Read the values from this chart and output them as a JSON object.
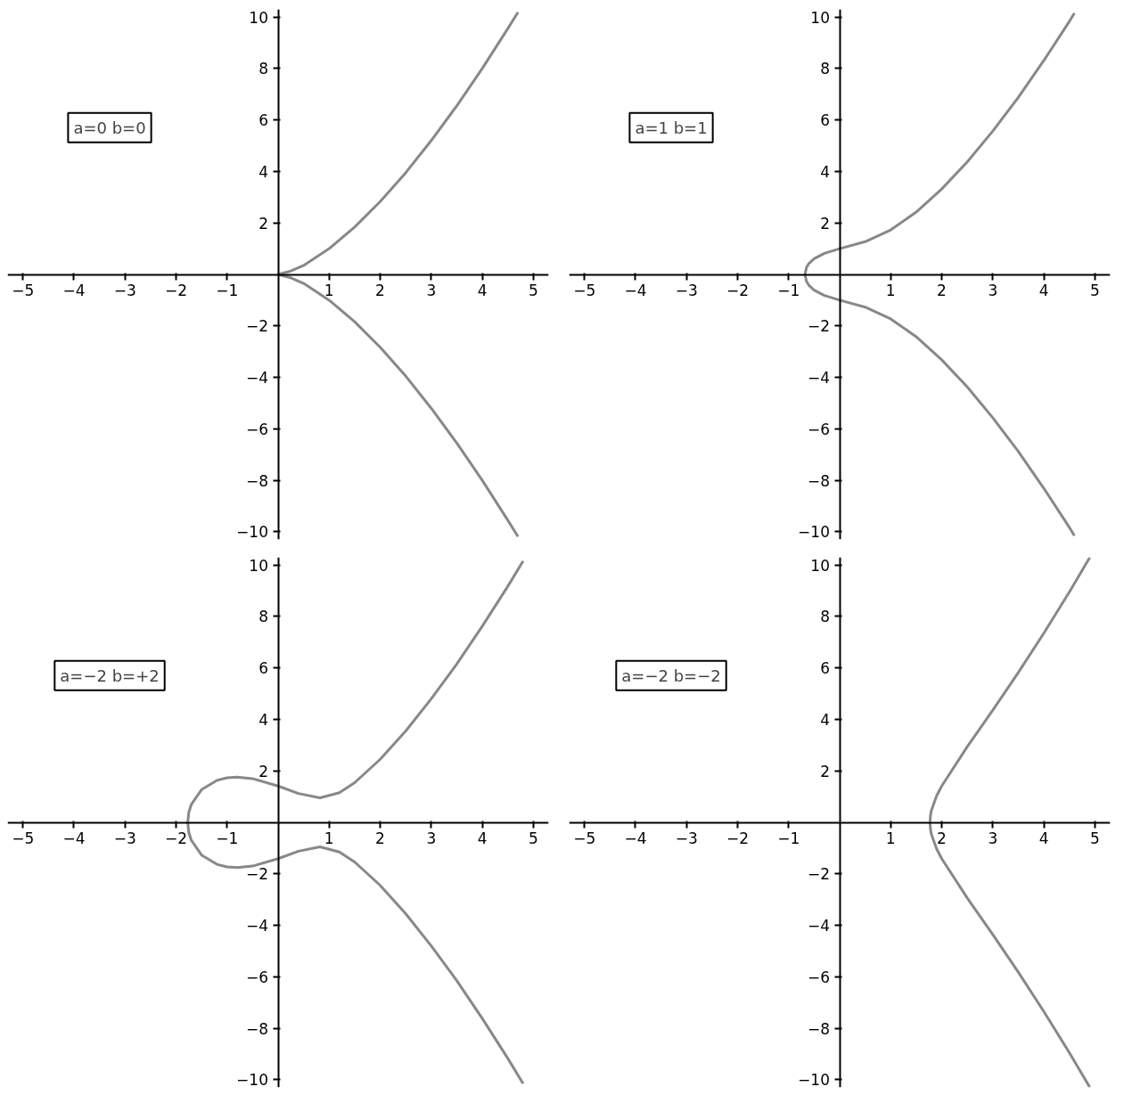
{
  "chart_data": [
    {
      "type": "line",
      "annotations": [
        "a=0 b=0"
      ],
      "xlim": [
        -5.3,
        5.3
      ],
      "ylim": [
        -10.3,
        10.3
      ],
      "xticks": [
        -5,
        -4,
        -3,
        -2,
        -1,
        1,
        2,
        3,
        4,
        5
      ],
      "yticks": [
        -10,
        -8,
        -6,
        -4,
        -2,
        2,
        4,
        6,
        8,
        10
      ],
      "grid": false,
      "series": [
        {
          "color": "#888888",
          "x": [
            4.7,
            4.5,
            4,
            3.5,
            3,
            2.5,
            2,
            1.5,
            1,
            0.5,
            0.25,
            0,
            0.25,
            0.5,
            1,
            1.5,
            2,
            2.5,
            3,
            3.5,
            4,
            4.5,
            4.7
          ],
          "values": [
            -10.19,
            -9.55,
            -8,
            -6.55,
            -5.2,
            -3.95,
            -2.83,
            -1.84,
            -1,
            -0.35,
            -0.13,
            0,
            0.13,
            0.35,
            1,
            1.84,
            2.83,
            3.95,
            5.2,
            6.55,
            8,
            9.55,
            10.19
          ]
        }
      ]
    },
    {
      "type": "line",
      "annotations": [
        "a=1 b=1"
      ],
      "xlim": [
        -5.3,
        5.3
      ],
      "ylim": [
        -10.3,
        10.3
      ],
      "xticks": [
        -5,
        -4,
        -3,
        -2,
        -1,
        1,
        2,
        3,
        4,
        5
      ],
      "yticks": [
        -10,
        -8,
        -6,
        -4,
        -2,
        2,
        4,
        6,
        8,
        10
      ],
      "grid": false,
      "series": [
        {
          "color": "#888888",
          "x": [
            4.6,
            4.5,
            4,
            3.5,
            3,
            2.5,
            2,
            1.5,
            1,
            0.5,
            0,
            -0.3,
            -0.5,
            -0.6,
            -0.65,
            -0.68,
            -0.65,
            -0.6,
            -0.5,
            -0.3,
            0,
            0.5,
            1,
            1.5,
            2,
            2.5,
            3,
            3.5,
            4,
            4.5,
            4.6
          ],
          "values": [
            -10.15,
            -9.83,
            -8.31,
            -6.88,
            -5.57,
            -4.37,
            -3.32,
            -2.42,
            -1.73,
            -1.27,
            -1,
            -0.82,
            -0.61,
            -0.43,
            -0.27,
            0,
            0.27,
            0.43,
            0.61,
            0.82,
            1,
            1.27,
            1.73,
            2.42,
            3.32,
            4.37,
            5.57,
            6.88,
            8.31,
            9.83,
            10.15
          ]
        }
      ]
    },
    {
      "type": "line",
      "annotations": [
        "a=−2 b=+2"
      ],
      "xlim": [
        -5.3,
        5.3
      ],
      "ylim": [
        -10.3,
        10.3
      ],
      "xticks": [
        -5,
        -4,
        -3,
        -2,
        -1,
        1,
        2,
        3,
        4,
        5
      ],
      "yticks": [
        -10,
        -8,
        -6,
        -4,
        -2,
        2,
        4,
        6,
        8,
        10
      ],
      "grid": false,
      "series": [
        {
          "color": "#888888",
          "x": [
            4.8,
            4.5,
            4,
            3.5,
            3,
            2.5,
            2,
            1.5,
            1.2,
            0.82,
            0.4,
            0,
            -0.5,
            -0.8,
            -1,
            -1.2,
            -1.5,
            -1.7,
            -1.75,
            -1.77,
            -1.75,
            -1.7,
            -1.5,
            -1.2,
            -1,
            -0.8,
            -0.5,
            0,
            0.4,
            0.82,
            1.2,
            1.5,
            2,
            2.5,
            3,
            3.5,
            4,
            4.5,
            4.8
          ],
          "values": [
            -10.15,
            -9.17,
            -7.62,
            -6.15,
            -4.8,
            -3.55,
            -2.45,
            -1.54,
            -1.15,
            -0.95,
            -1.12,
            -1.41,
            -1.7,
            -1.76,
            -1.73,
            -1.63,
            -1.27,
            -0.7,
            -0.38,
            0,
            0.38,
            0.7,
            1.27,
            1.63,
            1.73,
            1.76,
            1.7,
            1.41,
            1.12,
            0.95,
            1.15,
            1.54,
            2.45,
            3.55,
            4.8,
            6.15,
            7.62,
            9.17,
            10.15
          ]
        }
      ]
    },
    {
      "type": "line",
      "annotations": [
        "a=−2 b=−2"
      ],
      "xlim": [
        -5.3,
        5.3
      ],
      "ylim": [
        -10.3,
        10.3
      ],
      "xticks": [
        -5,
        -4,
        -3,
        -2,
        -1,
        1,
        2,
        3,
        4,
        5
      ],
      "yticks": [
        -10,
        -8,
        -6,
        -4,
        -2,
        2,
        4,
        6,
        8,
        10
      ],
      "grid": false,
      "series": [
        {
          "color": "#888888",
          "x": [
            4.9,
            4.5,
            4,
            3.5,
            3,
            2.5,
            2,
            1.9,
            1.8,
            1.78,
            1.77,
            1.78,
            1.8,
            1.9,
            2,
            2.5,
            3,
            3.5,
            4,
            4.5,
            4.9
          ],
          "values": [
            -10.29,
            -8.95,
            -7.35,
            -5.82,
            -4.36,
            -2.94,
            -1.41,
            -1.03,
            -0.48,
            -0.28,
            0,
            0.28,
            0.48,
            1.03,
            1.41,
            2.94,
            4.36,
            5.82,
            7.35,
            8.95,
            10.29
          ]
        }
      ]
    }
  ]
}
